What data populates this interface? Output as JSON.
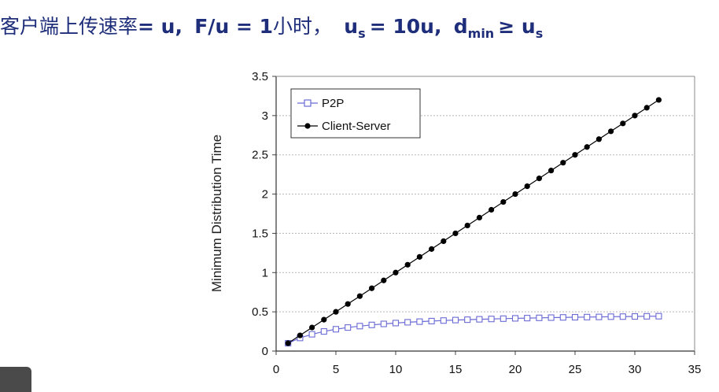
{
  "header": {
    "cn_text": "客户端上传速率",
    "part1": "= u,",
    "part2": "F/u = 1",
    "part3": "小时，",
    "part4": "u",
    "part4_sub": "s",
    "part5": "= 10u,",
    "part6": "d",
    "part6_sub": "min",
    "part7": "≥ u",
    "part7_sub": "s"
  },
  "chart_data": {
    "type": "line",
    "title": "",
    "xlabel": "",
    "ylabel": "Minimum Distribution Time",
    "xlim": [
      0,
      35
    ],
    "ylim": [
      0,
      3.5
    ],
    "x_ticks": [
      "0",
      "5",
      "10",
      "15",
      "20",
      "25",
      "30",
      "35"
    ],
    "y_ticks": [
      "0",
      "0.5",
      "1",
      "1.5",
      "2",
      "2.5",
      "3",
      "3.5"
    ],
    "grid": "horizontal",
    "legend_position": "top-left",
    "x": [
      1,
      2,
      3,
      4,
      5,
      6,
      7,
      8,
      9,
      10,
      11,
      12,
      13,
      14,
      15,
      16,
      17,
      18,
      19,
      20,
      21,
      22,
      23,
      24,
      25,
      26,
      27,
      28,
      29,
      30,
      31,
      32
    ],
    "series": [
      {
        "name": "P2P",
        "marker": "square-open",
        "color": "#6b6bd6",
        "values": [
          0.1,
          0.167,
          0.214,
          0.25,
          0.278,
          0.3,
          0.318,
          0.333,
          0.346,
          0.357,
          0.367,
          0.375,
          0.382,
          0.389,
          0.395,
          0.4,
          0.405,
          0.409,
          0.413,
          0.417,
          0.42,
          0.423,
          0.426,
          0.429,
          0.431,
          0.433,
          0.435,
          0.438,
          0.439,
          0.441,
          0.443,
          0.444
        ]
      },
      {
        "name": "Client-Server",
        "marker": "circle-filled",
        "color": "#000000",
        "values": [
          0.1,
          0.2,
          0.3,
          0.4,
          0.5,
          0.6,
          0.7,
          0.8,
          0.9,
          1.0,
          1.1,
          1.2,
          1.3,
          1.4,
          1.5,
          1.6,
          1.7,
          1.8,
          1.9,
          2.0,
          2.1,
          2.2,
          2.3,
          2.4,
          2.5,
          2.6,
          2.7,
          2.8,
          2.9,
          3.0,
          3.1,
          3.2
        ]
      }
    ]
  }
}
